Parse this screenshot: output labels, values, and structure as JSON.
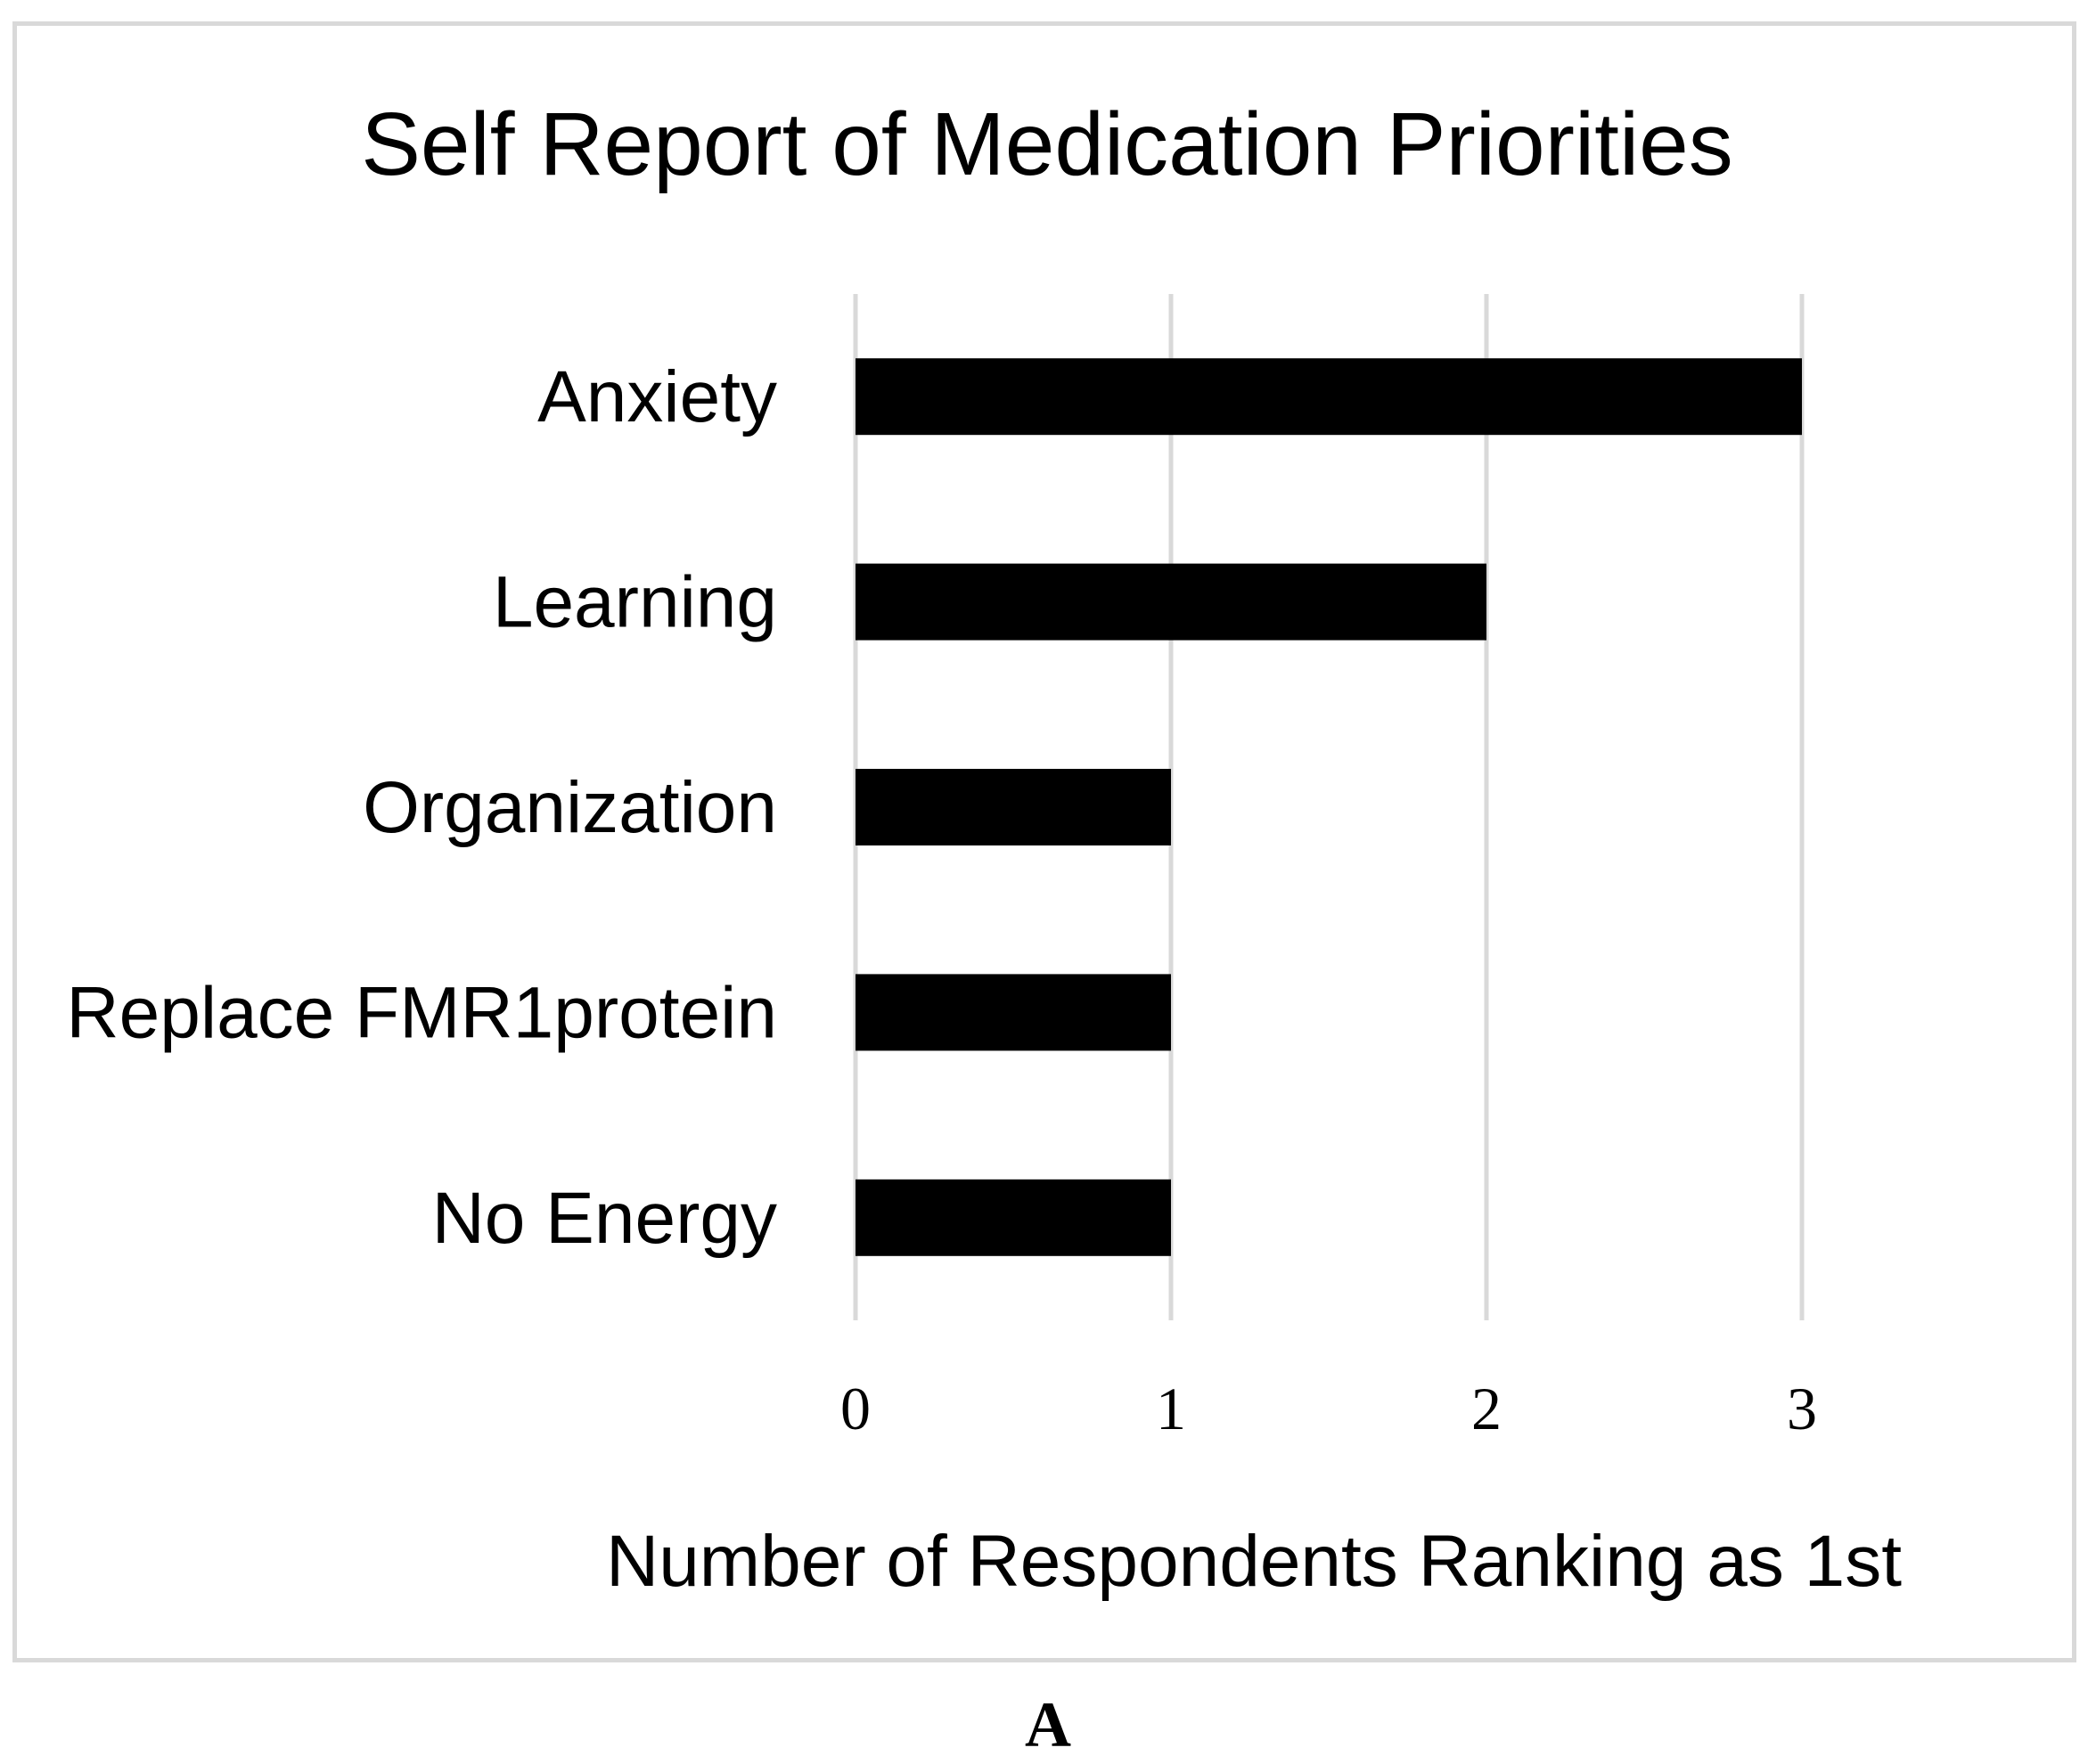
{
  "chart_data": {
    "type": "bar",
    "orientation": "horizontal",
    "title": "Self Report of Medication Priorities",
    "categories": [
      "Anxiety",
      "Learning",
      "Organization",
      "Replace FMR1protein",
      "No Energy"
    ],
    "values": [
      3,
      2,
      1,
      1,
      1
    ],
    "xlabel": "Number of Respondents Ranking as 1st",
    "ylabel": "",
    "xlim": [
      0,
      3
    ],
    "xticks": [
      0,
      1,
      2,
      3
    ],
    "grid": true,
    "bar_color": "#000000",
    "grid_color": "#d9d9d9"
  },
  "panel_label": "A"
}
